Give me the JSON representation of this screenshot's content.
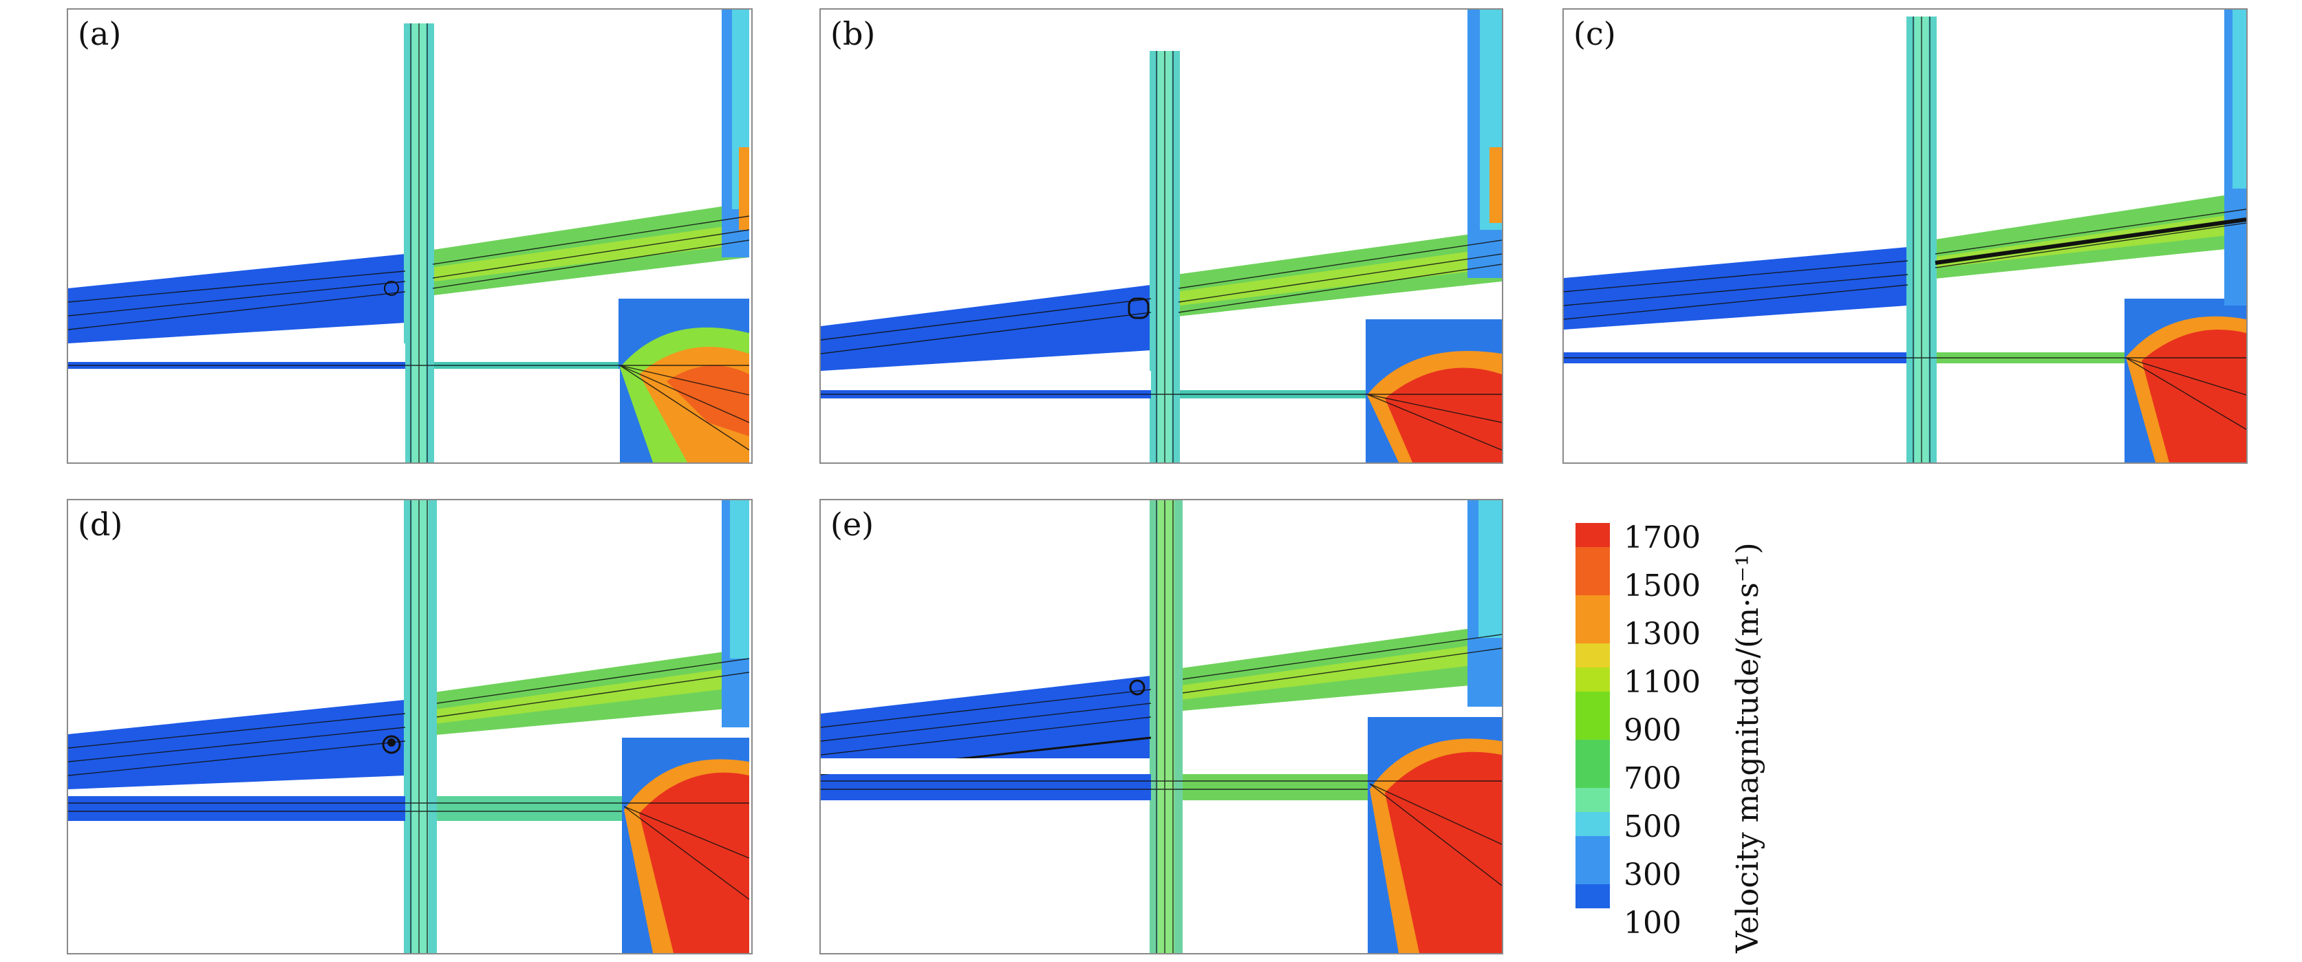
{
  "panels": [
    {
      "id": "a",
      "label": "(a)"
    },
    {
      "id": "b",
      "label": "(b)"
    },
    {
      "id": "c",
      "label": "(c)"
    },
    {
      "id": "d",
      "label": "(d)"
    },
    {
      "id": "e",
      "label": "(e)"
    }
  ],
  "colorbar": {
    "title": "Velocity magnitude/(m·s⁻¹)",
    "tick_labels": [
      "1700",
      "1500",
      "1300",
      "1100",
      "900",
      "700",
      "500",
      "300",
      "100"
    ],
    "colors": [
      "#e8321e",
      "#f0621e",
      "#f5961e",
      "#e6d228",
      "#b4e11e",
      "#78dc1e",
      "#50d25a",
      "#6ee6a0",
      "#55d2e6",
      "#3c96f0",
      "#1e64e6"
    ]
  }
}
